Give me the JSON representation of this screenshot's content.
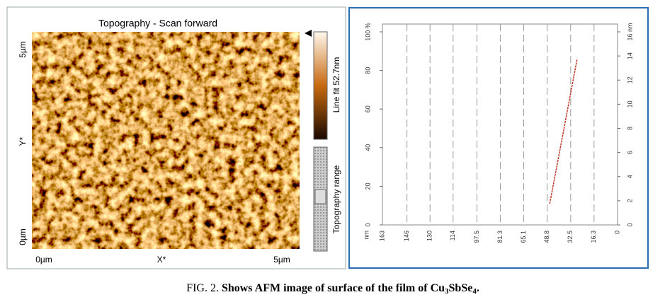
{
  "afm_panel": {
    "title": "Topography - Scan forward",
    "y_top": "5µm",
    "y_bottom": "0µm",
    "y_axis": "Y*",
    "x_left": "0µm",
    "x_axis": "X*",
    "x_right": "5µm",
    "colorbar_label": "Line fit 52.7nm",
    "range_label": "Topography range"
  },
  "chart_data": {
    "type": "line",
    "xlabel": "nm",
    "xlim": [
      163,
      0
    ],
    "ylim": [
      0,
      100
    ],
    "y2lim": [
      0,
      16
    ],
    "xticks": [
      163,
      146,
      130,
      114,
      97.5,
      81.3,
      65.1,
      48.8,
      32.5,
      16.3,
      0
    ],
    "yticks": [
      0,
      20,
      40,
      60,
      80,
      {
        "value": 100,
        "label": "100 %"
      }
    ],
    "y2ticks": [
      0,
      2,
      4,
      6,
      8,
      10,
      12,
      14,
      {
        "value": 16,
        "label": "16 nm"
      }
    ],
    "grid": true,
    "series": [
      {
        "color": "#c0392b",
        "x": [
          47,
          28
        ],
        "values": [
          11,
          86
        ]
      }
    ]
  },
  "caption_parts": [
    "FIG. 2. ",
    "Shows AFM image of surface of the film of Cu",
    "3",
    "SbSe",
    "4",
    "."
  ]
}
